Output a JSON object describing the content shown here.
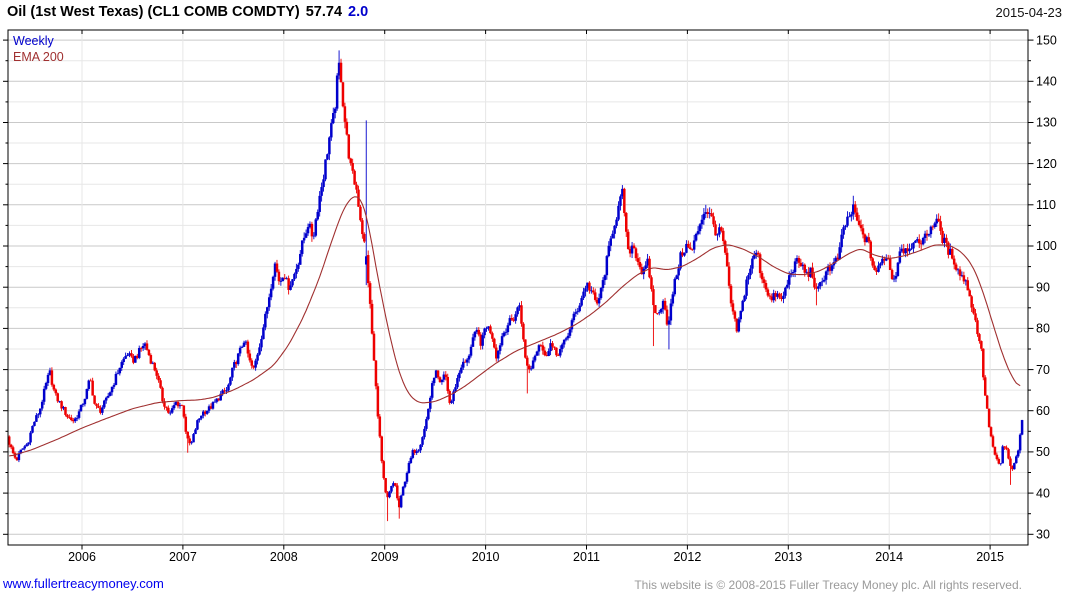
{
  "header": {
    "title": "Oil (1st West Texas) (CL1 COMB COMDTY)",
    "last_price": "57.74",
    "change": "2.0",
    "date": "2015-04-23"
  },
  "footer": {
    "website": "www.fullertreacymoney.com",
    "copyright": "This website is © 2008-2015 Fuller Treacy Money plc. All rights reserved."
  },
  "colors": {
    "up": "#0000cc",
    "down": "#ee0000",
    "ema": "#a03030",
    "grid_major": "#c9c9c9",
    "grid_minor": "#e7e7e7",
    "frame": "#000000",
    "link": "#0000ee",
    "copyright_text": "#9a9a9a"
  },
  "chart_data": {
    "type": "candlestick",
    "title": "Oil (1st West Texas) (CL1 COMB COMDTY)",
    "timeframe": "Weekly",
    "overlay": "EMA 200",
    "last_price": 57.74,
    "change": 2.0,
    "x_label_years": [
      2006,
      2007,
      2008,
      2009,
      2010,
      2011,
      2012,
      2013,
      2014,
      2015
    ],
    "y_ticks": [
      30,
      40,
      50,
      60,
      70,
      80,
      90,
      100,
      110,
      120,
      130,
      140,
      150
    ],
    "y_minor_step": 5,
    "x_range": [
      2005.267,
      2015.376
    ],
    "y_range": [
      27.4,
      152.45
    ],
    "points_per_year": 52,
    "series": [
      {
        "name": "Weekly",
        "style": "candles",
        "up_color": "#0000cc",
        "down_color": "#ee0000",
        "keypoints": [
          [
            2005.267,
            53
          ],
          [
            2005.31,
            50
          ],
          [
            2005.35,
            48
          ],
          [
            2005.4,
            50.5
          ],
          [
            2005.46,
            52
          ],
          [
            2005.52,
            57
          ],
          [
            2005.58,
            60
          ],
          [
            2005.64,
            66
          ],
          [
            2005.68,
            69.5
          ],
          [
            2005.73,
            64
          ],
          [
            2005.8,
            61
          ],
          [
            2005.86,
            58.5
          ],
          [
            2005.92,
            57.5
          ],
          [
            2005.98,
            60
          ],
          [
            2006.04,
            64
          ],
          [
            2006.08,
            68
          ],
          [
            2006.13,
            61
          ],
          [
            2006.18,
            60
          ],
          [
            2006.24,
            62.5
          ],
          [
            2006.31,
            66.5
          ],
          [
            2006.38,
            71
          ],
          [
            2006.45,
            74
          ],
          [
            2006.5,
            72
          ],
          [
            2006.56,
            74
          ],
          [
            2006.62,
            76.5
          ],
          [
            2006.68,
            72.5
          ],
          [
            2006.74,
            69
          ],
          [
            2006.8,
            62.5
          ],
          [
            2006.87,
            59
          ],
          [
            2006.93,
            62
          ],
          [
            2007.0,
            61
          ],
          [
            2007.04,
            53
          ],
          [
            2007.08,
            51.5
          ],
          [
            2007.14,
            57
          ],
          [
            2007.19,
            59.5
          ],
          [
            2007.26,
            60.5
          ],
          [
            2007.32,
            62
          ],
          [
            2007.38,
            64
          ],
          [
            2007.44,
            65
          ],
          [
            2007.5,
            70.5
          ],
          [
            2007.56,
            74
          ],
          [
            2007.61,
            77.5
          ],
          [
            2007.66,
            72
          ],
          [
            2007.7,
            69.8
          ],
          [
            2007.76,
            76
          ],
          [
            2007.82,
            83
          ],
          [
            2007.87,
            90
          ],
          [
            2007.91,
            96
          ],
          [
            2007.96,
            91
          ],
          [
            2008.0,
            94
          ],
          [
            2008.04,
            90
          ],
          [
            2008.09,
            92
          ],
          [
            2008.14,
            96
          ],
          [
            2008.19,
            101
          ],
          [
            2008.24,
            105.5
          ],
          [
            2008.29,
            102
          ],
          [
            2008.34,
            110
          ],
          [
            2008.4,
            118
          ],
          [
            2008.45,
            126
          ],
          [
            2008.5,
            132
          ],
          [
            2008.53,
            140
          ],
          [
            2008.555,
            145
          ],
          [
            2008.59,
            134
          ],
          [
            2008.63,
            125
          ],
          [
            2008.67,
            118
          ],
          [
            2008.72,
            114
          ],
          [
            2008.77,
            105
          ],
          [
            2008.82,
            97
          ],
          [
            2008.86,
            84
          ],
          [
            2008.9,
            70
          ],
          [
            2008.94,
            57
          ],
          [
            2008.98,
            45
          ],
          [
            2009.02,
            38
          ],
          [
            2009.06,
            41
          ],
          [
            2009.1,
            43
          ],
          [
            2009.14,
            36
          ],
          [
            2009.18,
            41
          ],
          [
            2009.23,
            46
          ],
          [
            2009.28,
            50
          ],
          [
            2009.34,
            51
          ],
          [
            2009.4,
            56
          ],
          [
            2009.45,
            63
          ],
          [
            2009.5,
            70
          ],
          [
            2009.55,
            66
          ],
          [
            2009.6,
            69
          ],
          [
            2009.65,
            61
          ],
          [
            2009.7,
            66
          ],
          [
            2009.76,
            71
          ],
          [
            2009.82,
            72
          ],
          [
            2009.87,
            77.5
          ],
          [
            2009.92,
            79
          ],
          [
            2009.96,
            76
          ],
          [
            2010.0,
            81
          ],
          [
            2010.06,
            79
          ],
          [
            2010.11,
            73
          ],
          [
            2010.16,
            78
          ],
          [
            2010.22,
            81
          ],
          [
            2010.28,
            82.5
          ],
          [
            2010.34,
            86
          ],
          [
            2010.39,
            73
          ],
          [
            2010.44,
            69.5
          ],
          [
            2010.49,
            74
          ],
          [
            2010.54,
            77
          ],
          [
            2010.59,
            72.7
          ],
          [
            2010.64,
            76.5
          ],
          [
            2010.7,
            73.5
          ],
          [
            2010.76,
            75.5
          ],
          [
            2010.81,
            78
          ],
          [
            2010.86,
            82
          ],
          [
            2010.91,
            84.5
          ],
          [
            2010.96,
            88
          ],
          [
            2011.0,
            91
          ],
          [
            2011.05,
            89
          ],
          [
            2011.1,
            85.5
          ],
          [
            2011.15,
            89.5
          ],
          [
            2011.21,
            97.5
          ],
          [
            2011.26,
            104
          ],
          [
            2011.31,
            108.5
          ],
          [
            2011.36,
            113
          ],
          [
            2011.41,
            98
          ],
          [
            2011.46,
            100.5
          ],
          [
            2011.51,
            96.5
          ],
          [
            2011.56,
            93
          ],
          [
            2011.61,
            96
          ],
          [
            2011.66,
            86
          ],
          [
            2011.71,
            82.5
          ],
          [
            2011.76,
            87.5
          ],
          [
            2011.81,
            80
          ],
          [
            2011.85,
            88
          ],
          [
            2011.9,
            94
          ],
          [
            2011.94,
            98
          ],
          [
            2011.99,
            100
          ],
          [
            2012.04,
            98.5
          ],
          [
            2012.09,
            102.5
          ],
          [
            2012.14,
            107
          ],
          [
            2012.19,
            109
          ],
          [
            2012.24,
            106.5
          ],
          [
            2012.29,
            103
          ],
          [
            2012.34,
            103.5
          ],
          [
            2012.39,
            95
          ],
          [
            2012.44,
            84.5
          ],
          [
            2012.49,
            79.5
          ],
          [
            2012.54,
            85
          ],
          [
            2012.59,
            92
          ],
          [
            2012.64,
            96
          ],
          [
            2012.69,
            99
          ],
          [
            2012.73,
            93
          ],
          [
            2012.78,
            90
          ],
          [
            2012.83,
            86.5
          ],
          [
            2012.88,
            88.5
          ],
          [
            2012.93,
            86.5
          ],
          [
            2012.98,
            90
          ],
          [
            2013.03,
            94
          ],
          [
            2013.08,
            96
          ],
          [
            2013.13,
            95.5
          ],
          [
            2013.18,
            93
          ],
          [
            2013.23,
            94
          ],
          [
            2013.28,
            88.5
          ],
          [
            2013.33,
            91
          ],
          [
            2013.38,
            94.5
          ],
          [
            2013.44,
            95
          ],
          [
            2013.5,
            97.5
          ],
          [
            2013.55,
            104.5
          ],
          [
            2013.6,
            107
          ],
          [
            2013.65,
            109
          ],
          [
            2013.7,
            104.5
          ],
          [
            2013.75,
            102.5
          ],
          [
            2013.8,
            100
          ],
          [
            2013.84,
            95
          ],
          [
            2013.88,
            93.5
          ],
          [
            2013.93,
            96.5
          ],
          [
            2013.98,
            98
          ],
          [
            2014.02,
            93
          ],
          [
            2014.06,
            92
          ],
          [
            2014.11,
            100
          ],
          [
            2014.16,
            99
          ],
          [
            2014.21,
            100.5
          ],
          [
            2014.26,
            100
          ],
          [
            2014.31,
            101.5
          ],
          [
            2014.36,
            102
          ],
          [
            2014.42,
            105
          ],
          [
            2014.47,
            106.5
          ],
          [
            2014.52,
            102.5
          ],
          [
            2014.58,
            99
          ],
          [
            2014.63,
            97.5
          ],
          [
            2014.68,
            94
          ],
          [
            2014.73,
            92.5
          ],
          [
            2014.78,
            90
          ],
          [
            2014.82,
            85.5
          ],
          [
            2014.87,
            80
          ],
          [
            2014.91,
            75.5
          ],
          [
            2014.94,
            66.5
          ],
          [
            2014.98,
            58
          ],
          [
            2015.02,
            52
          ],
          [
            2015.06,
            48.2
          ],
          [
            2015.1,
            46
          ],
          [
            2015.13,
            52
          ],
          [
            2015.17,
            50
          ],
          [
            2015.21,
            45.2
          ],
          [
            2015.25,
            47.5
          ],
          [
            2015.29,
            52
          ],
          [
            2015.32,
            57.7
          ]
        ]
      },
      {
        "name": "EMA 200",
        "style": "line",
        "color": "#a03030",
        "keypoints": [
          [
            2005.267,
            48.8
          ],
          [
            2005.5,
            50.5
          ],
          [
            2005.75,
            53
          ],
          [
            2006.0,
            55.8
          ],
          [
            2006.25,
            58.2
          ],
          [
            2006.5,
            60.5
          ],
          [
            2006.75,
            62
          ],
          [
            2007.0,
            62.5
          ],
          [
            2007.15,
            62.6
          ],
          [
            2007.3,
            63.2
          ],
          [
            2007.5,
            65
          ],
          [
            2007.7,
            67.5
          ],
          [
            2007.9,
            71
          ],
          [
            2008.05,
            76
          ],
          [
            2008.2,
            83
          ],
          [
            2008.35,
            92
          ],
          [
            2008.5,
            103
          ],
          [
            2008.6,
            109.5
          ],
          [
            2008.7,
            112.5
          ],
          [
            2008.78,
            111
          ],
          [
            2008.85,
            104
          ],
          [
            2008.92,
            94
          ],
          [
            2009.0,
            84
          ],
          [
            2009.08,
            75
          ],
          [
            2009.16,
            68
          ],
          [
            2009.25,
            63.5
          ],
          [
            2009.35,
            61.8
          ],
          [
            2009.5,
            62.2
          ],
          [
            2009.65,
            63.8
          ],
          [
            2009.8,
            66
          ],
          [
            2009.95,
            68.8
          ],
          [
            2010.1,
            71.5
          ],
          [
            2010.3,
            74.5
          ],
          [
            2010.5,
            76.5
          ],
          [
            2010.7,
            78.5
          ],
          [
            2010.9,
            81
          ],
          [
            2011.05,
            83.5
          ],
          [
            2011.2,
            86.5
          ],
          [
            2011.35,
            90
          ],
          [
            2011.5,
            93
          ],
          [
            2011.65,
            94.8
          ],
          [
            2011.8,
            94.2
          ],
          [
            2011.95,
            95
          ],
          [
            2012.1,
            97
          ],
          [
            2012.25,
            99.5
          ],
          [
            2012.4,
            100.4
          ],
          [
            2012.55,
            99.3
          ],
          [
            2012.7,
            97.5
          ],
          [
            2012.85,
            95
          ],
          [
            2013.0,
            93.2
          ],
          [
            2013.15,
            93
          ],
          [
            2013.3,
            93.8
          ],
          [
            2013.45,
            95.8
          ],
          [
            2013.6,
            98.2
          ],
          [
            2013.72,
            99.4
          ],
          [
            2013.85,
            97.8
          ],
          [
            2014.0,
            96.9
          ],
          [
            2014.15,
            97.6
          ],
          [
            2014.3,
            98.8
          ],
          [
            2014.45,
            100.3
          ],
          [
            2014.6,
            100.2
          ],
          [
            2014.72,
            98.5
          ],
          [
            2014.82,
            95.5
          ],
          [
            2014.9,
            91
          ],
          [
            2014.98,
            85
          ],
          [
            2015.06,
            78.5
          ],
          [
            2015.14,
            72.5
          ],
          [
            2015.22,
            68
          ],
          [
            2015.3,
            65.4
          ]
        ]
      }
    ],
    "overrides": [
      {
        "t": 2008.555,
        "h": 147.5
      },
      {
        "t": 2008.82,
        "o": 95.5,
        "c": 97.5,
        "h": 130.5,
        "l": 90.5
      },
      {
        "t": 2009.02,
        "l": 33.2
      },
      {
        "t": 2009.14,
        "l": 33.8
      },
      {
        "t": 2007.04,
        "l": 49.8
      },
      {
        "t": 2010.42,
        "l": 64.2
      },
      {
        "t": 2011.66,
        "l": 75.7
      },
      {
        "t": 2011.81,
        "l": 74.9
      },
      {
        "t": 2013.28,
        "l": 85.6
      },
      {
        "t": 2015.21,
        "l": 42.0
      },
      {
        "t": 2011.36,
        "h": 114.8
      },
      {
        "t": 2012.19,
        "h": 110.0
      },
      {
        "t": 2013.65,
        "h": 112.2
      },
      {
        "t": 2014.47,
        "h": 107.7
      }
    ]
  }
}
